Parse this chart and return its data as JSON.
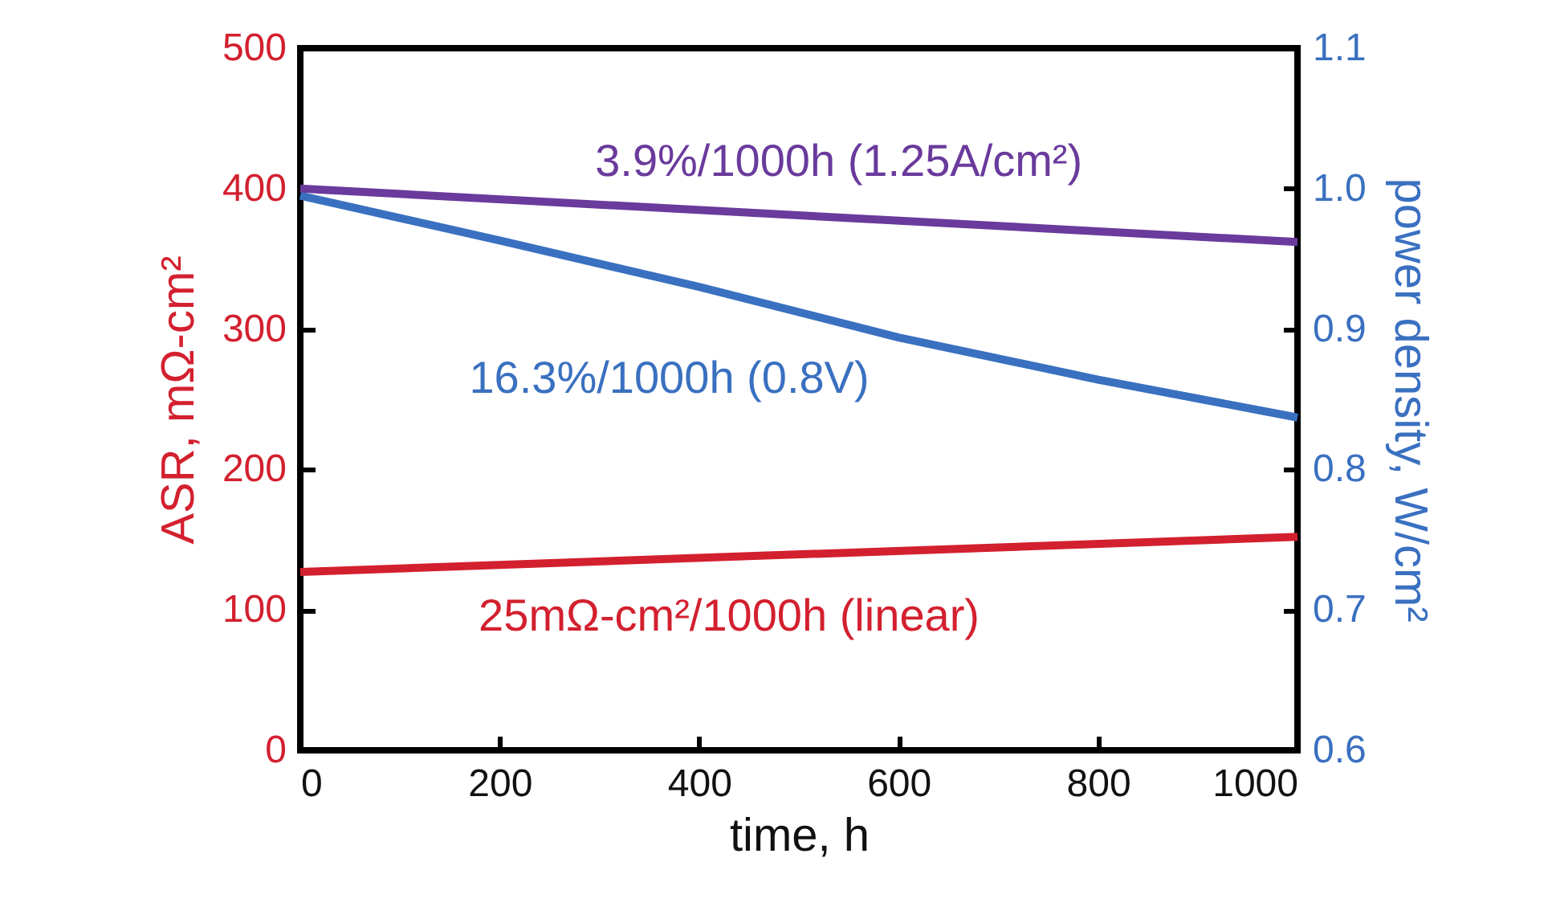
{
  "chart_data": {
    "type": "line",
    "xlabel": "time, h",
    "ylabel": "ASR, mΩ-cm²",
    "y2label": "power density, W/cm²",
    "xlim": [
      0,
      1000
    ],
    "xticks": [
      0,
      200,
      400,
      600,
      800,
      1000
    ],
    "ylim": [
      0,
      500
    ],
    "yticks": [
      0,
      100,
      200,
      300,
      400,
      500
    ],
    "y2lim": [
      0.6,
      1.1
    ],
    "y2ticks": [
      {
        "value": 0.6,
        "label": "0.6"
      },
      {
        "value": 0.7,
        "label": "0.7"
      },
      {
        "value": 0.8,
        "label": "0.8"
      },
      {
        "value": 0.9,
        "label": "0.9"
      },
      {
        "value": 1.0,
        "label": "1.0"
      },
      {
        "value": 1.1,
        "label": "1.1"
      }
    ],
    "grid": false,
    "legend": false,
    "marker": "none",
    "line_style": "solid",
    "series": [
      {
        "name": "25mΩ-cm²/1000h (linear)",
        "color": "#d3202f",
        "axis": "y",
        "x": [
          0,
          1000
        ],
        "values": [
          127,
          152
        ]
      },
      {
        "name": "16.3%/1000h (0.8V)",
        "color": "#3a70c0",
        "axis": "y2",
        "x": [
          0,
          200,
          400,
          600,
          800,
          1000
        ],
        "values": [
          0.995,
          0.963,
          0.93,
          0.894,
          0.864,
          0.837
        ]
      },
      {
        "name": "3.9%/1000h (1.25A/cm²)",
        "color": "#6a3a9c",
        "axis": "y2",
        "x": [
          0,
          1000
        ],
        "values": [
          1.0,
          0.962
        ]
      }
    ]
  }
}
